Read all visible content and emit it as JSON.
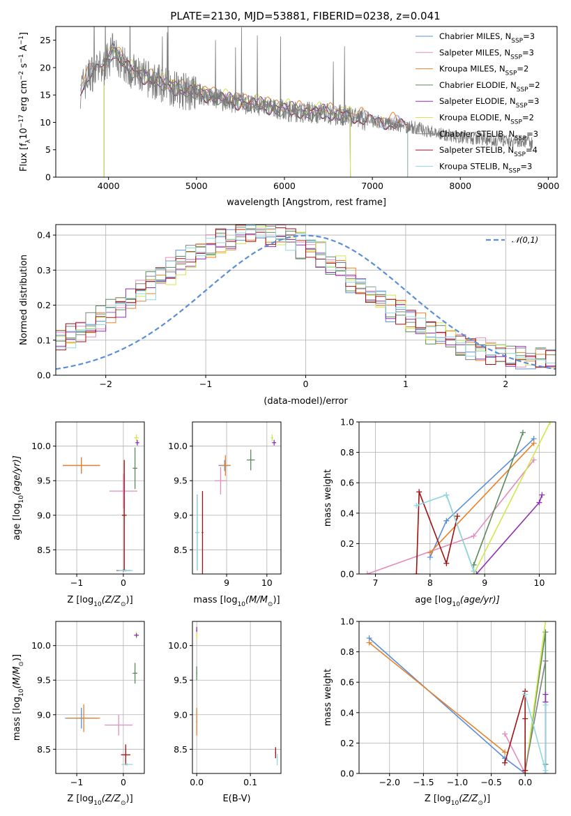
{
  "title": "PLATE=2130, MJD=53881, FIBERID=0238, z=0.041",
  "colors": {
    "Chabrier MILES": "#5b8ed8",
    "Salpeter MILES": "#e48cbf",
    "Kroupa MILES": "#e8822a",
    "Chabrier ELODIE": "#5a8a5a",
    "Salpeter ELODIE": "#8e2fb0",
    "Kroupa ELODIE": "#cfe84a",
    "Chabrier STELIB": "#808080",
    "Salpeter STELIB": "#a01010",
    "Kroupa STELIB": "#8ed8e0",
    "data": "#7a7a7a",
    "normal": "#5b8ed8"
  },
  "chart_data": [
    {
      "id": "spectrum",
      "type": "line",
      "xlabel": "wavelength [Angstrom, rest frame]",
      "ylabel_main": "Flux [f",
      "ylabel_sub": "λ",
      "ylabel_rest": "10",
      "ylabel_exp": "−17",
      "ylabel_unit": " erg cm",
      "ylabel_unit_exp": "−2",
      "ylabel_unit2": " s",
      "ylabel_unit2_exp": "−1",
      "ylabel_unit3": " A",
      "ylabel_unit3_exp": "−1",
      "ylabel_end": "]",
      "xlim": [
        3400,
        9100
      ],
      "ylim": [
        0,
        27.5
      ],
      "xticks": [
        4000,
        5000,
        6000,
        7000,
        8000,
        9000
      ],
      "yticks": [
        0,
        5,
        10,
        15,
        20,
        25
      ],
      "legend": [
        {
          "pre": "Chabrier MILES, N",
          "post": "=3"
        },
        {
          "pre": "Salpeter MILES, N",
          "post": "=3"
        },
        {
          "pre": "Kroupa MILES, N",
          "post": "=2"
        },
        {
          "pre": "Chabrier ELODIE, N",
          "post": "=2"
        },
        {
          "pre": "Salpeter ELODIE, N",
          "post": "=3"
        },
        {
          "pre": "Kroupa ELODIE, N",
          "post": "=2"
        },
        {
          "pre": "Chabrier STELIB, N",
          "post": "=3"
        },
        {
          "pre": "Salpeter STELIB, N",
          "post": "=4"
        },
        {
          "pre": "Kroupa STELIB, N",
          "post": "=3"
        }
      ],
      "legend_sub": "SSP",
      "continuum": [
        [
          3680,
          16
        ],
        [
          3800,
          19
        ],
        [
          3950,
          20
        ],
        [
          4050,
          23
        ],
        [
          4150,
          21
        ],
        [
          4300,
          19
        ],
        [
          4500,
          17.5
        ],
        [
          4700,
          16.5
        ],
        [
          4900,
          15.5
        ],
        [
          5100,
          15
        ],
        [
          5300,
          14
        ],
        [
          5500,
          13.5
        ],
        [
          5700,
          13
        ],
        [
          5900,
          12.5
        ],
        [
          6100,
          12
        ],
        [
          6300,
          11.8
        ],
        [
          6500,
          11.5
        ],
        [
          6700,
          11.2
        ],
        [
          6900,
          10.5
        ],
        [
          7100,
          10
        ],
        [
          7300,
          9.5
        ],
        [
          7500,
          9
        ],
        [
          7700,
          8.2
        ],
        [
          7900,
          7.6
        ],
        [
          8100,
          7.2
        ],
        [
          8400,
          6.8
        ],
        [
          8800,
          6.3
        ]
      ],
      "model_stelib_end": 7400,
      "model_elodie_start": 3950,
      "model_elodie_end": 6750
    },
    {
      "id": "residuals",
      "type": "histogram",
      "xlabel": "(data-model)/error",
      "ylabel": "Normed distribution",
      "xlim": [
        -2.5,
        2.5
      ],
      "ylim": [
        0,
        0.43
      ],
      "xticks": [
        -2,
        -1,
        0,
        1,
        2
      ],
      "yticks": [
        0.0,
        0.1,
        0.2,
        0.3,
        0.4
      ],
      "legend": "𝒩(0,1)",
      "bin_width": 0.1
    },
    {
      "id": "age_vs_Z",
      "type": "errorbar",
      "xlabel": "Z [log",
      "xlabel_sub": "10",
      "xlabel_rest": "(Z/Z",
      "xlabel_sun": "⊙",
      "xlabel_end": ")]",
      "ylabel": "age  [log",
      "ylabel_sub": "10",
      "ylabel_rest": "(age/yr)]",
      "xlim": [
        -1.45,
        0.45
      ],
      "ylim": [
        8.15,
        10.35
      ],
      "xticks": [
        -1,
        0
      ],
      "yticks": [
        8.5,
        9.0,
        9.5,
        10.0
      ],
      "points": [
        {
          "model": "Chabrier MILES",
          "x": -0.9,
          "y": 9.72,
          "xerr": 0.4,
          "yerr": 0.12
        },
        {
          "model": "Kroupa MILES",
          "x": -0.9,
          "y": 9.72,
          "xerr": 0.4,
          "yerr": 0.1
        },
        {
          "model": "Salpeter MILES",
          "x": 0.0,
          "y": 9.35,
          "xerr": 0.3,
          "yerr": 0.25
        },
        {
          "model": "Salpeter STELIB",
          "x": 0.02,
          "y": 9.0,
          "xerr": 0.05,
          "yerr": 0.8
        },
        {
          "model": "Chabrier STELIB",
          "x": 0.0,
          "y": 8.2,
          "xerr": 0.15,
          "yerr": 0.02
        },
        {
          "model": "Kroupa STELIB",
          "x": 0.05,
          "y": 8.2,
          "xerr": 0.15,
          "yerr": 0.02
        },
        {
          "model": "Chabrier ELODIE",
          "x": 0.25,
          "y": 9.68,
          "xerr": 0.05,
          "yerr": 0.3
        },
        {
          "model": "Kroupa ELODIE",
          "x": 0.28,
          "y": 10.12,
          "xerr": 0.05,
          "yerr": 0.05
        },
        {
          "model": "Salpeter ELODIE",
          "x": 0.3,
          "y": 10.05,
          "xerr": 0.04,
          "yerr": 0.04
        }
      ]
    },
    {
      "id": "age_vs_mass",
      "type": "errorbar",
      "xlabel": "mass [log",
      "xlabel_sub": "10",
      "xlabel_rest": "(M/M",
      "xlabel_sun": "⊙",
      "xlabel_end": ")]",
      "xlim": [
        8.15,
        10.35
      ],
      "ylim": [
        8.15,
        10.35
      ],
      "xticks": [
        9,
        10
      ],
      "yticks": [
        8.5,
        9.0,
        9.5,
        10.0
      ],
      "points": [
        {
          "model": "Chabrier MILES",
          "x": 8.95,
          "y": 9.72,
          "xerr": 0.15,
          "yerr": 0.08
        },
        {
          "model": "Kroupa MILES",
          "x": 8.97,
          "y": 9.72,
          "xerr": 0.12,
          "yerr": 0.15
        },
        {
          "model": "Salpeter MILES",
          "x": 8.85,
          "y": 9.5,
          "xerr": 0.15,
          "yerr": 0.2
        },
        {
          "model": "Salpeter STELIB",
          "x": 8.4,
          "y": 8.75,
          "xerr": 0.02,
          "yerr": 0.6
        },
        {
          "model": "Chabrier STELIB",
          "x": 8.27,
          "y": 8.75,
          "xerr": 0.05,
          "yerr": 0.55
        },
        {
          "model": "Kroupa STELIB",
          "x": 8.27,
          "y": 8.75,
          "xerr": 0.05,
          "yerr": 0.55
        },
        {
          "model": "Chabrier ELODIE",
          "x": 9.6,
          "y": 9.8,
          "xerr": 0.1,
          "yerr": 0.15
        },
        {
          "model": "Kroupa ELODIE",
          "x": 10.13,
          "y": 10.12,
          "xerr": 0.03,
          "yerr": 0.05
        },
        {
          "model": "Salpeter ELODIE",
          "x": 10.18,
          "y": 10.05,
          "xerr": 0.05,
          "yerr": 0.04
        }
      ]
    },
    {
      "id": "mass_weight_vs_age",
      "type": "line",
      "xlabel": "age  [log",
      "xlabel_sub": "10",
      "xlabel_rest": "(age/yr)]",
      "ylabel": "mass weight",
      "xlim": [
        6.7,
        10.3
      ],
      "ylim": [
        0,
        1.0
      ],
      "xticks": [
        7,
        8,
        9,
        10
      ],
      "yticks": [
        0.0,
        0.2,
        0.4,
        0.6,
        0.8,
        1.0
      ],
      "series": [
        {
          "model": "Chabrier MILES",
          "x": [
            8.0,
            8.3,
            9.9
          ],
          "y": [
            0.11,
            0.35,
            0.89
          ]
        },
        {
          "model": "Salpeter MILES",
          "x": [
            6.85,
            8.8,
            9.9
          ],
          "y": [
            0.0,
            0.25,
            0.75
          ]
        },
        {
          "model": "Kroupa MILES",
          "x": [
            8.0,
            9.9
          ],
          "y": [
            0.14,
            0.86
          ]
        },
        {
          "model": "Chabrier ELODIE",
          "x": [
            8.8,
            9.7
          ],
          "y": [
            0.06,
            0.93
          ]
        },
        {
          "model": "Salpeter ELODIE",
          "x": [
            8.85,
            10.0,
            10.05
          ],
          "y": [
            0.0,
            0.47,
            0.52
          ]
        },
        {
          "model": "Kroupa ELODIE",
          "x": [
            8.8,
            10.2
          ],
          "y": [
            0.0,
            1.0
          ]
        },
        {
          "model": "Chabrier STELIB",
          "x": [
            8.3,
            8.8
          ],
          "y": [
            0.52,
            0.02
          ]
        },
        {
          "model": "Salpeter STELIB",
          "x": [
            7.75,
            7.8,
            8.3,
            8.5
          ],
          "y": [
            0.0,
            0.54,
            0.07,
            0.38
          ]
        },
        {
          "model": "Kroupa STELIB",
          "x": [
            7.75,
            8.3,
            8.8
          ],
          "y": [
            0.45,
            0.52,
            0.02
          ]
        }
      ]
    },
    {
      "id": "mass_vs_Z",
      "type": "errorbar",
      "xlabel": "Z [log",
      "xlabel_sub": "10",
      "xlabel_rest": "(Z/Z",
      "xlabel_sun": "⊙",
      "xlabel_end": ")]",
      "ylabel": "mass [log",
      "ylabel_sub": "10",
      "ylabel_rest": "(M/M",
      "ylabel_sun": "⊙",
      "ylabel_end": ")]",
      "xlim": [
        -1.45,
        0.45
      ],
      "ylim": [
        8.15,
        10.35
      ],
      "xticks": [
        -1,
        0
      ],
      "yticks": [
        8.5,
        9.0,
        9.5,
        10.0
      ],
      "points": [
        {
          "model": "Chabrier MILES",
          "x": -0.9,
          "y": 8.95,
          "xerr": 0.35,
          "yerr": 0.15
        },
        {
          "model": "Kroupa MILES",
          "x": -0.85,
          "y": 8.95,
          "xerr": 0.35,
          "yerr": 0.2
        },
        {
          "model": "Salpeter MILES",
          "x": -0.1,
          "y": 8.85,
          "xerr": 0.3,
          "yerr": 0.15
        },
        {
          "model": "Salpeter STELIB",
          "x": 0.05,
          "y": 8.42,
          "xerr": 0.1,
          "yerr": 0.15
        },
        {
          "model": "Kroupa STELIB",
          "x": 0.08,
          "y": 8.28,
          "xerr": 0.12,
          "yerr": 0.02
        },
        {
          "model": "Chabrier ELODIE",
          "x": 0.25,
          "y": 9.6,
          "xerr": 0.05,
          "yerr": 0.15
        },
        {
          "model": "Kroupa ELODIE",
          "x": 0.28,
          "y": 10.15,
          "xerr": 0.05,
          "yerr": 0.05
        },
        {
          "model": "Salpeter ELODIE",
          "x": 0.28,
          "y": 10.15,
          "xerr": 0.05,
          "yerr": 0.03
        }
      ]
    },
    {
      "id": "mass_vs_ebv",
      "type": "errorbar",
      "xlabel": "E(B-V)",
      "xlim": [
        -0.008,
        0.157
      ],
      "ylim": [
        8.15,
        10.35
      ],
      "xticks": [
        0.0,
        0.1
      ],
      "yticks": [
        8.5,
        9.0,
        9.5,
        10.0
      ],
      "points": [
        {
          "model": "Kroupa MILES",
          "x": 0.0,
          "y": 8.9,
          "xerr": 0.001,
          "yerr": 0.2
        },
        {
          "model": "Chabrier ELODIE",
          "x": 0.0,
          "y": 9.6,
          "xerr": 0.001,
          "yerr": 0.1
        },
        {
          "model": "Salpeter ELODIE",
          "x": 0.0,
          "y": 10.22,
          "xerr": 0.001,
          "yerr": 0.05
        },
        {
          "model": "Kroupa ELODIE",
          "x": 0.0,
          "y": 10.15,
          "xerr": 0.001,
          "yerr": 0.05
        },
        {
          "model": "Salpeter STELIB",
          "x": 0.147,
          "y": 8.45,
          "xerr": 0.001,
          "yerr": 0.08
        },
        {
          "model": "Kroupa STELIB",
          "x": 0.15,
          "y": 8.35,
          "xerr": 0.001,
          "yerr": 0.08
        }
      ]
    },
    {
      "id": "mass_weight_vs_Z",
      "type": "line",
      "xlabel": "Z [log",
      "xlabel_sub": "10",
      "xlabel_rest": "(Z/Z",
      "xlabel_sun": "⊙",
      "xlabel_end": ")]",
      "ylabel": "mass weight",
      "xlim": [
        -2.45,
        0.45
      ],
      "ylim": [
        0,
        1.0
      ],
      "xticks": [
        -2.0,
        -1.5,
        -1.0,
        -0.5,
        0.0
      ],
      "yticks": [
        0.0,
        0.2,
        0.4,
        0.6,
        0.8,
        1.0
      ],
      "series": [
        {
          "model": "Chabrier MILES",
          "x": [
            -2.3,
            -0.3,
            0.0
          ],
          "y": [
            0.89,
            0.1,
            0.0
          ]
        },
        {
          "model": "Salpeter MILES",
          "x": [
            -0.3,
            0.0
          ],
          "y": [
            0.26,
            0.0
          ]
        },
        {
          "model": "Kroupa MILES",
          "x": [
            -2.3,
            -0.3
          ],
          "y": [
            0.86,
            0.14
          ]
        },
        {
          "model": "Chabrier ELODIE",
          "x": [
            0.0,
            0.3,
            0.3
          ],
          "y": [
            0.0,
            0.93,
            0.06
          ]
        },
        {
          "model": "Salpeter ELODIE",
          "x": [
            0.3,
            0.3,
            0.3
          ],
          "y": [
            0.52,
            0.47,
            0.0
          ]
        },
        {
          "model": "Kroupa ELODIE",
          "x": [
            0.0,
            0.3
          ],
          "y": [
            0.0,
            1.0
          ]
        },
        {
          "model": "Chabrier STELIB",
          "x": [
            0.0,
            0.3
          ],
          "y": [
            0.02,
            0.74
          ]
        },
        {
          "model": "Salpeter STELIB",
          "x": [
            -0.3,
            0.0,
            0.0,
            0.0
          ],
          "y": [
            0.07,
            0.54,
            0.36,
            0.02
          ]
        },
        {
          "model": "Kroupa STELIB",
          "x": [
            0.0,
            0.3,
            0.3
          ],
          "y": [
            0.52,
            0.02,
            0.45
          ]
        }
      ]
    }
  ]
}
